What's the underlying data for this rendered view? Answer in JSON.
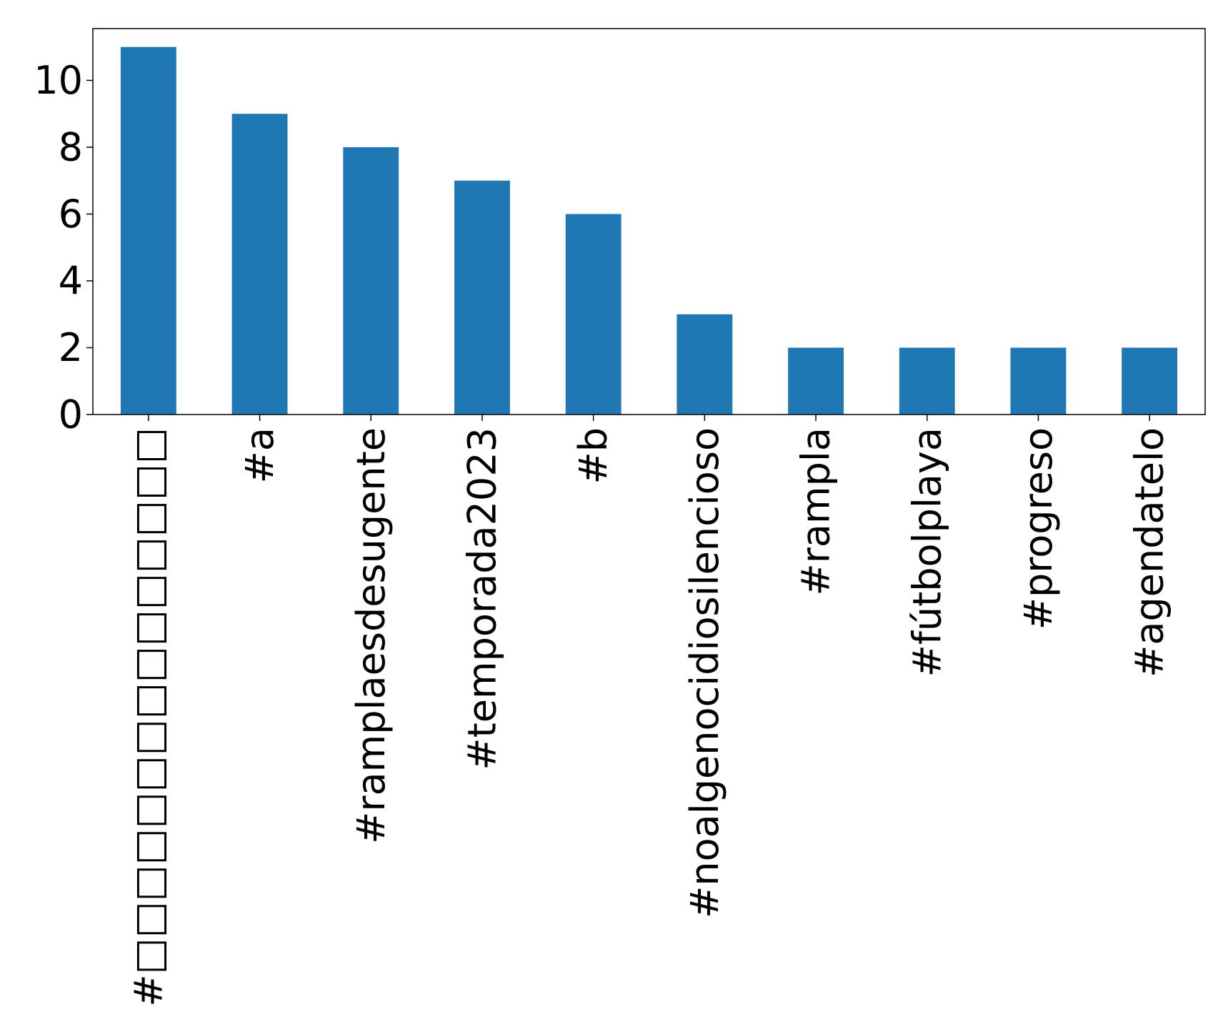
{
  "chart_data": {
    "type": "bar",
    "title": "",
    "xlabel": "",
    "ylabel": "",
    "categories": [
      "#□□□□□□□□□□□□□□□",
      "#a",
      "#ramplaesdesugente",
      "#temporada2023",
      "#b",
      "#noalgenocidiosilencioso",
      "#rampla",
      "#fútbolplaya",
      "#progreso",
      "#agendatelo"
    ],
    "values": [
      11,
      9,
      8,
      7,
      6,
      3,
      2,
      2,
      2,
      2
    ],
    "ylim": [
      0,
      11.55
    ],
    "yticks": [
      0,
      2,
      4,
      6,
      8,
      10
    ],
    "bar_color": "#1f77b4",
    "grid": false,
    "legend": "none"
  }
}
